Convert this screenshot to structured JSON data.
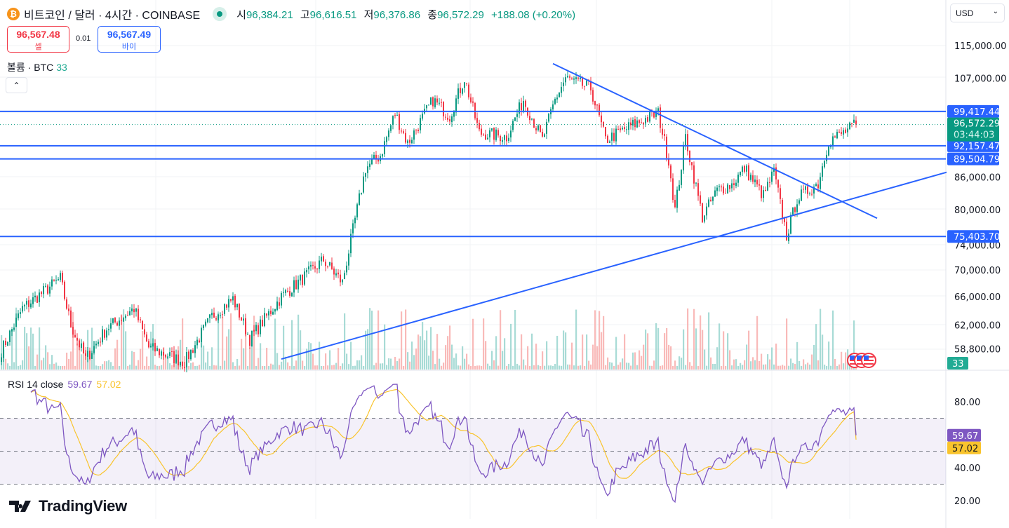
{
  "header": {
    "symbol_icon": "bitcoin-icon",
    "symbol": "비트코인 / 달러 · 4시간 · COINBASE",
    "market_status": "open",
    "ohlc": [
      {
        "label": "시",
        "value": "96,384.21"
      },
      {
        "label": "고",
        "value": "96,616.51"
      },
      {
        "label": "저",
        "value": "96,376.86"
      },
      {
        "label": "종",
        "value": "96,572.29"
      }
    ],
    "change": "+188.08 (+0.20%)"
  },
  "trade": {
    "sell_price": "96,567.48",
    "sell_label": "셀",
    "spread": "0.01",
    "buy_price": "96,567.49",
    "buy_label": "바이"
  },
  "volume_legend": {
    "label": "볼륨 · BTC",
    "value": "33"
  },
  "currency": "USD",
  "rsi_legend": {
    "label": "RSI 14 close",
    "rsi": "59.67",
    "ma": "57.02"
  },
  "branding": "TradingView",
  "colors": {
    "up": "#089981",
    "down": "#f23645",
    "lines": "#2962ff",
    "rsi": "#7e57c2",
    "rsi_ma": "#f9c42d"
  },
  "chart_data": [
    {
      "type": "candlestick",
      "title": "BTC/USD 4h COINBASE",
      "yscale": "log",
      "ylim": [
        57500,
        118000
      ],
      "ytick_labels": [
        "115,000.00",
        "107,000.00",
        "86,000.00",
        "80,000.00",
        "74,000.00",
        "70,000.00",
        "66,000.00",
        "62,000.00",
        "58,800.00"
      ],
      "ytick_values": [
        115000,
        107000,
        86000,
        80000,
        74000,
        70000,
        66000,
        62000,
        58800
      ],
      "approx_close_path": {
        "bar_index": [
          0,
          10,
          17,
          28,
          33,
          40,
          50,
          63,
          70,
          87,
          100,
          110,
          118,
          133,
          143,
          153,
          162,
          167,
          173,
          180,
          187,
          193,
          205,
          213,
          220,
          227,
          240,
          248,
          257,
          263,
          268,
          280,
          287,
          300,
          312,
          317,
          320,
          325,
          333,
          340,
          347,
          353,
          362,
          367,
          373,
          378,
          388,
          393,
          400,
          406
        ],
        "close": [
          58600,
          64300,
          66000,
          68700,
          62000,
          57500,
          61500,
          64300,
          59000,
          57100,
          63200,
          65700,
          60100,
          66000,
          68700,
          71600,
          68100,
          76500,
          87700,
          90200,
          99000,
          92600,
          102000,
          98400,
          107000,
          94800,
          94000,
          102000,
          93300,
          102000,
          107000,
          104600,
          93300,
          96500,
          99000,
          89200,
          80000,
          94000,
          78700,
          83500,
          84600,
          87700,
          82500,
          87000,
          75500,
          82000,
          84800,
          93300,
          94800,
          96572.29
        ]
      },
      "horizontal_lines": [
        {
          "price": 99417.44,
          "label": "99,417.44"
        },
        {
          "price": 92157.47,
          "label": "92,157.47"
        },
        {
          "price": 89504.79,
          "label": "89,504.79"
        },
        {
          "price": 75403.7,
          "label": "75,403.70"
        }
      ],
      "trend_lines": [
        {
          "name": "descending",
          "from": {
            "bar": 262,
            "price": 110500
          },
          "to": {
            "bar": 416,
            "price": 78500
          }
        },
        {
          "name": "ascending",
          "from": {
            "bar": 133,
            "price": 57500
          },
          "to": {
            "bar": 449,
            "price": 86900
          }
        }
      ],
      "last_price": {
        "label": "96,572.29",
        "countdown": "03:44:03",
        "value": 96572.29
      },
      "volume_last": "33"
    },
    {
      "type": "line",
      "title": "RSI 14 close",
      "ylim": [
        0,
        100
      ],
      "ytick_labels": [
        "80.00",
        "40.00",
        "20.00"
      ],
      "ytick_values": [
        80,
        40,
        20
      ],
      "bands": [
        30,
        50,
        70
      ],
      "last": {
        "rsi": 59.67,
        "rsi_label": "59.67",
        "ma": 57.02,
        "ma_label": "57.02"
      }
    }
  ]
}
